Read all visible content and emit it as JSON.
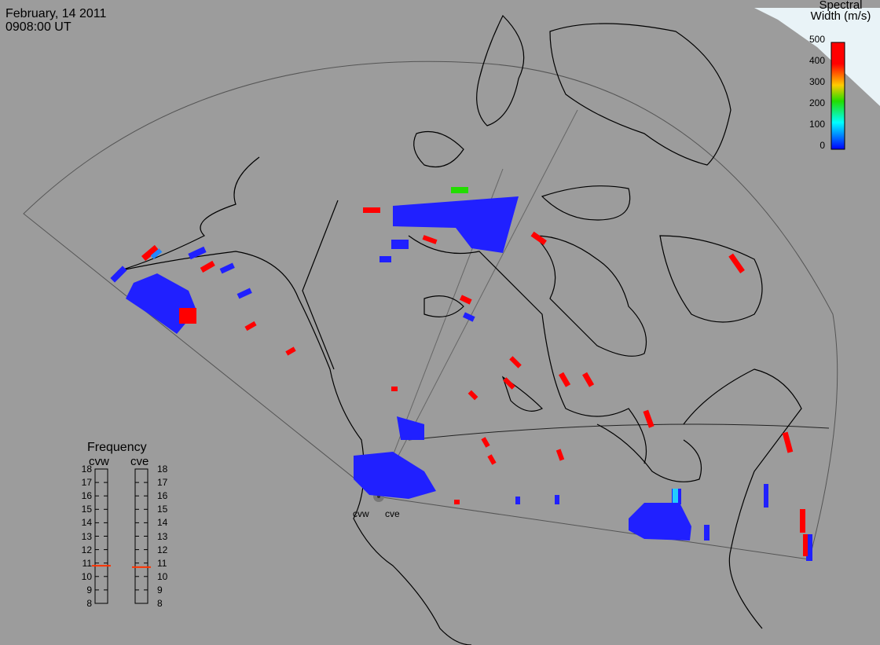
{
  "header": {
    "date": "February, 14 2011",
    "time": "0908:00 UT"
  },
  "colorbar": {
    "title_line1": "Spectral",
    "title_line2": "Width (m/s)",
    "ticks": [
      "500",
      "400",
      "300",
      "200",
      "100",
      "0"
    ],
    "colors": [
      "#ff0000",
      "#ff8800",
      "#ffff00",
      "#00dd00",
      "#00ffff",
      "#0000ff"
    ]
  },
  "frequency": {
    "title": "Frequency",
    "radars": [
      "cvw",
      "cve"
    ],
    "scale": [
      "18",
      "17",
      "16",
      "15",
      "14",
      "13",
      "12",
      "11",
      "10",
      "9",
      "8"
    ],
    "values_mhz": [
      10.8,
      10.7
    ],
    "indicator_color": "#ff3300"
  },
  "sites": {
    "west": "cvw",
    "east": "cve"
  },
  "colors": {
    "background": "#9c9c9c",
    "land_outline": "#000000",
    "ice_region": "#e9f3f7",
    "high_width": "#ff0000",
    "low_width": "#2020ff"
  }
}
